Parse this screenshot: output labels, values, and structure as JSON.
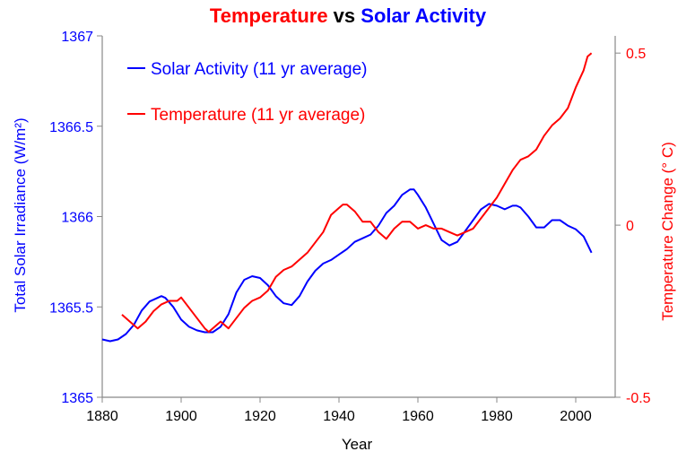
{
  "chart_data": {
    "type": "line",
    "title_parts": [
      {
        "text": "Temperature",
        "color": "#ff0000"
      },
      {
        "text": " vs ",
        "color": "#000000"
      },
      {
        "text": "Solar Activity",
        "color": "#0000ff"
      }
    ],
    "xlabel": "Year",
    "ylabel_left": "Total Solar Irradiance (W/m²)",
    "ylabel_right": "Temperature Change (° C)",
    "xlim": [
      1880,
      2010
    ],
    "ylim_left": [
      1365,
      1367
    ],
    "ylim_right": [
      -0.5,
      0.55
    ],
    "x_ticks": [
      {
        "value": 1880,
        "label": "1880"
      },
      {
        "value": 1900,
        "label": "1900"
      },
      {
        "value": 1920,
        "label": "1920"
      },
      {
        "value": 1940,
        "label": "1940"
      },
      {
        "value": 1960,
        "label": "1960"
      },
      {
        "value": 1980,
        "label": "1980"
      },
      {
        "value": 2000,
        "label": "2000"
      }
    ],
    "y_ticks_left": [
      {
        "value": 1365,
        "label": "1365"
      },
      {
        "value": 1365.5,
        "label": "1365.5"
      },
      {
        "value": 1366,
        "label": "1366"
      },
      {
        "value": 1366.5,
        "label": "1366.5"
      },
      {
        "value": 1367,
        "label": "1367"
      }
    ],
    "y_ticks_right": [
      {
        "value": -0.5,
        "label": "-0.5"
      },
      {
        "value": 0,
        "label": "0"
      },
      {
        "value": 0.5,
        "label": "0.5"
      }
    ],
    "legend_position": "top-left",
    "grid": false,
    "colors": {
      "solar": "#0000ff",
      "temperature": "#ff0000",
      "axes": "#888888"
    },
    "series": [
      {
        "name": "Solar Activity (11 yr average)",
        "axis": "left",
        "color": "#0000ff",
        "x": [
          1880,
          1882,
          1884,
          1886,
          1888,
          1890,
          1892,
          1894,
          1895,
          1896,
          1898,
          1900,
          1902,
          1904,
          1906,
          1908,
          1910,
          1912,
          1914,
          1916,
          1918,
          1920,
          1922,
          1924,
          1926,
          1928,
          1930,
          1932,
          1934,
          1936,
          1938,
          1940,
          1942,
          1944,
          1946,
          1948,
          1950,
          1952,
          1954,
          1956,
          1958,
          1959,
          1960,
          1962,
          1964,
          1966,
          1968,
          1970,
          1972,
          1974,
          1976,
          1978,
          1980,
          1982,
          1984,
          1985,
          1986,
          1988,
          1990,
          1992,
          1994,
          1996,
          1998,
          2000,
          2002,
          2004
        ],
        "y": [
          1365.32,
          1365.31,
          1365.32,
          1365.35,
          1365.4,
          1365.48,
          1365.53,
          1365.55,
          1365.56,
          1365.55,
          1365.5,
          1365.43,
          1365.39,
          1365.37,
          1365.36,
          1365.36,
          1365.39,
          1365.46,
          1365.58,
          1365.65,
          1365.67,
          1365.66,
          1365.62,
          1365.56,
          1365.52,
          1365.51,
          1365.56,
          1365.64,
          1365.7,
          1365.74,
          1365.76,
          1365.79,
          1365.82,
          1365.86,
          1365.88,
          1365.9,
          1365.95,
          1366.02,
          1366.06,
          1366.12,
          1366.15,
          1366.15,
          1366.12,
          1366.05,
          1365.96,
          1365.87,
          1365.84,
          1365.86,
          1365.92,
          1365.98,
          1366.04,
          1366.07,
          1366.06,
          1366.04,
          1366.06,
          1366.06,
          1366.05,
          1366.0,
          1365.94,
          1365.94,
          1365.98,
          1365.98,
          1365.95,
          1365.93,
          1365.89,
          1365.8
        ]
      },
      {
        "name": "Temperature (11 yr average)",
        "axis": "right",
        "color": "#ff0000",
        "x": [
          1885,
          1887,
          1889,
          1891,
          1893,
          1895,
          1897,
          1899,
          1900,
          1902,
          1904,
          1906,
          1907,
          1908,
          1910,
          1912,
          1914,
          1916,
          1918,
          1920,
          1922,
          1924,
          1926,
          1928,
          1930,
          1932,
          1934,
          1936,
          1938,
          1940,
          1941,
          1942,
          1944,
          1946,
          1948,
          1950,
          1952,
          1954,
          1956,
          1958,
          1960,
          1962,
          1964,
          1966,
          1968,
          1970,
          1972,
          1974,
          1976,
          1978,
          1980,
          1982,
          1984,
          1986,
          1988,
          1990,
          1992,
          1994,
          1996,
          1998,
          2000,
          2002,
          2003,
          2004
        ],
        "y": [
          -0.26,
          -0.28,
          -0.3,
          -0.28,
          -0.25,
          -0.23,
          -0.22,
          -0.22,
          -0.21,
          -0.24,
          -0.27,
          -0.3,
          -0.31,
          -0.3,
          -0.28,
          -0.3,
          -0.27,
          -0.24,
          -0.22,
          -0.21,
          -0.19,
          -0.15,
          -0.13,
          -0.12,
          -0.1,
          -0.08,
          -0.05,
          -0.02,
          0.03,
          0.05,
          0.06,
          0.06,
          0.04,
          0.01,
          0.01,
          -0.02,
          -0.04,
          -0.01,
          0.01,
          0.01,
          -0.01,
          0.0,
          -0.01,
          -0.01,
          -0.02,
          -0.03,
          -0.02,
          -0.01,
          0.02,
          0.05,
          0.08,
          0.12,
          0.16,
          0.19,
          0.2,
          0.22,
          0.26,
          0.29,
          0.31,
          0.34,
          0.4,
          0.45,
          0.49,
          0.5
        ]
      }
    ]
  }
}
